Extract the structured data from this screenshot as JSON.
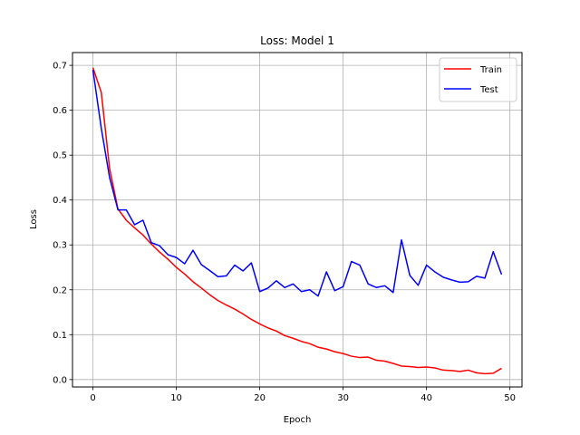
{
  "chart_data": {
    "type": "line",
    "title": "Loss: Model 1",
    "xlabel": "Epoch",
    "ylabel": "Loss",
    "xlim": [
      -2.45,
      51.45
    ],
    "ylim": [
      -0.0165,
      0.7285
    ],
    "xticks": [
      0,
      10,
      20,
      30,
      40,
      50
    ],
    "yticks": [
      0.0,
      0.1,
      0.2,
      0.3,
      0.4,
      0.5,
      0.6,
      0.7
    ],
    "xtick_labels": [
      "0",
      "10",
      "20",
      "30",
      "40",
      "50"
    ],
    "ytick_labels": [
      "0.0",
      "0.1",
      "0.2",
      "0.3",
      "0.4",
      "0.5",
      "0.6",
      "0.7"
    ],
    "grid": true,
    "legend_position": "top-right",
    "x": [
      0,
      1,
      2,
      3,
      4,
      5,
      6,
      7,
      8,
      9,
      10,
      11,
      12,
      13,
      14,
      15,
      16,
      17,
      18,
      19,
      20,
      21,
      22,
      23,
      24,
      25,
      26,
      27,
      28,
      29,
      30,
      31,
      32,
      33,
      34,
      35,
      36,
      37,
      38,
      39,
      40,
      41,
      42,
      43,
      44,
      45,
      46,
      47,
      48,
      49
    ],
    "series": [
      {
        "name": "Train",
        "color": "#ff0000",
        "values": [
          0.695,
          0.64,
          0.47,
          0.38,
          0.355,
          0.338,
          0.322,
          0.302,
          0.284,
          0.268,
          0.25,
          0.235,
          0.218,
          0.204,
          0.189,
          0.176,
          0.166,
          0.157,
          0.146,
          0.134,
          0.124,
          0.115,
          0.108,
          0.098,
          0.092,
          0.085,
          0.08,
          0.072,
          0.068,
          0.062,
          0.058,
          0.052,
          0.049,
          0.05,
          0.043,
          0.041,
          0.036,
          0.03,
          0.029,
          0.027,
          0.028,
          0.026,
          0.021,
          0.02,
          0.018,
          0.021,
          0.015,
          0.013,
          0.014,
          0.025
        ]
      },
      {
        "name": "Test",
        "color": "#0000ff",
        "values": [
          0.69,
          0.56,
          0.45,
          0.378,
          0.378,
          0.345,
          0.355,
          0.305,
          0.298,
          0.278,
          0.272,
          0.258,
          0.288,
          0.256,
          0.243,
          0.229,
          0.231,
          0.255,
          0.242,
          0.26,
          0.196,
          0.204,
          0.22,
          0.205,
          0.213,
          0.196,
          0.2,
          0.186,
          0.24,
          0.198,
          0.207,
          0.263,
          0.255,
          0.213,
          0.205,
          0.209,
          0.194,
          0.311,
          0.232,
          0.21,
          0.255,
          0.24,
          0.228,
          0.222,
          0.217,
          0.218,
          0.23,
          0.226,
          0.285,
          0.234
        ]
      }
    ]
  }
}
